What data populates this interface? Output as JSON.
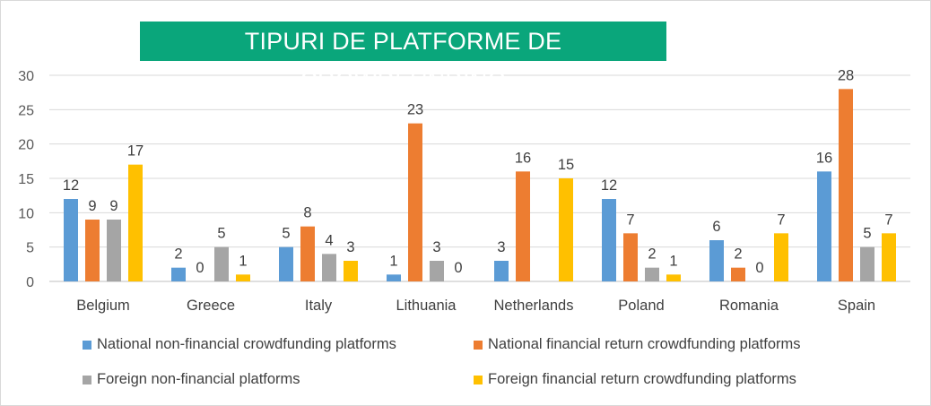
{
  "chart_data": {
    "type": "bar",
    "title": "TIPURI DE PLATFORME DE CROWDFUNDING",
    "categories": [
      "Belgium",
      "Greece",
      "Italy",
      "Lithuania",
      "Netherlands",
      "Poland",
      "Romania",
      "Spain"
    ],
    "series": [
      {
        "name": "National non-financial crowdfunding platforms",
        "color": "#5b9bd5",
        "values": [
          12,
          2,
          5,
          1,
          3,
          12,
          6,
          16
        ],
        "labels": [
          "12",
          "2",
          "5",
          "1",
          "3",
          "12",
          "6",
          "16"
        ]
      },
      {
        "name": "National financial return crowdfunding platforms",
        "color": "#ed7d31",
        "values": [
          9,
          0,
          8,
          23,
          16,
          7,
          2,
          28
        ],
        "labels": [
          "9",
          "0",
          "8",
          "23",
          "16",
          "7",
          "2",
          "28"
        ]
      },
      {
        "name": "Foreign non-financial platforms",
        "color": "#a5a5a5",
        "values": [
          9,
          5,
          4,
          3,
          null,
          2,
          0,
          5
        ],
        "labels": [
          "9",
          "5",
          "4",
          "3",
          "",
          "2",
          "0",
          "5"
        ]
      },
      {
        "name": "Foreign financial return crowdfunding platforms",
        "color": "#ffc000",
        "values": [
          17,
          1,
          3,
          0,
          15,
          1,
          7,
          7
        ],
        "labels": [
          "17",
          "1",
          "3",
          "0",
          "15",
          "1",
          "7",
          "7"
        ]
      }
    ],
    "yticks": [
      "0",
      "5",
      "10",
      "15",
      "20",
      "25",
      "30"
    ],
    "ylim": [
      0,
      30
    ],
    "grid": true,
    "legend_position": "bottom"
  }
}
